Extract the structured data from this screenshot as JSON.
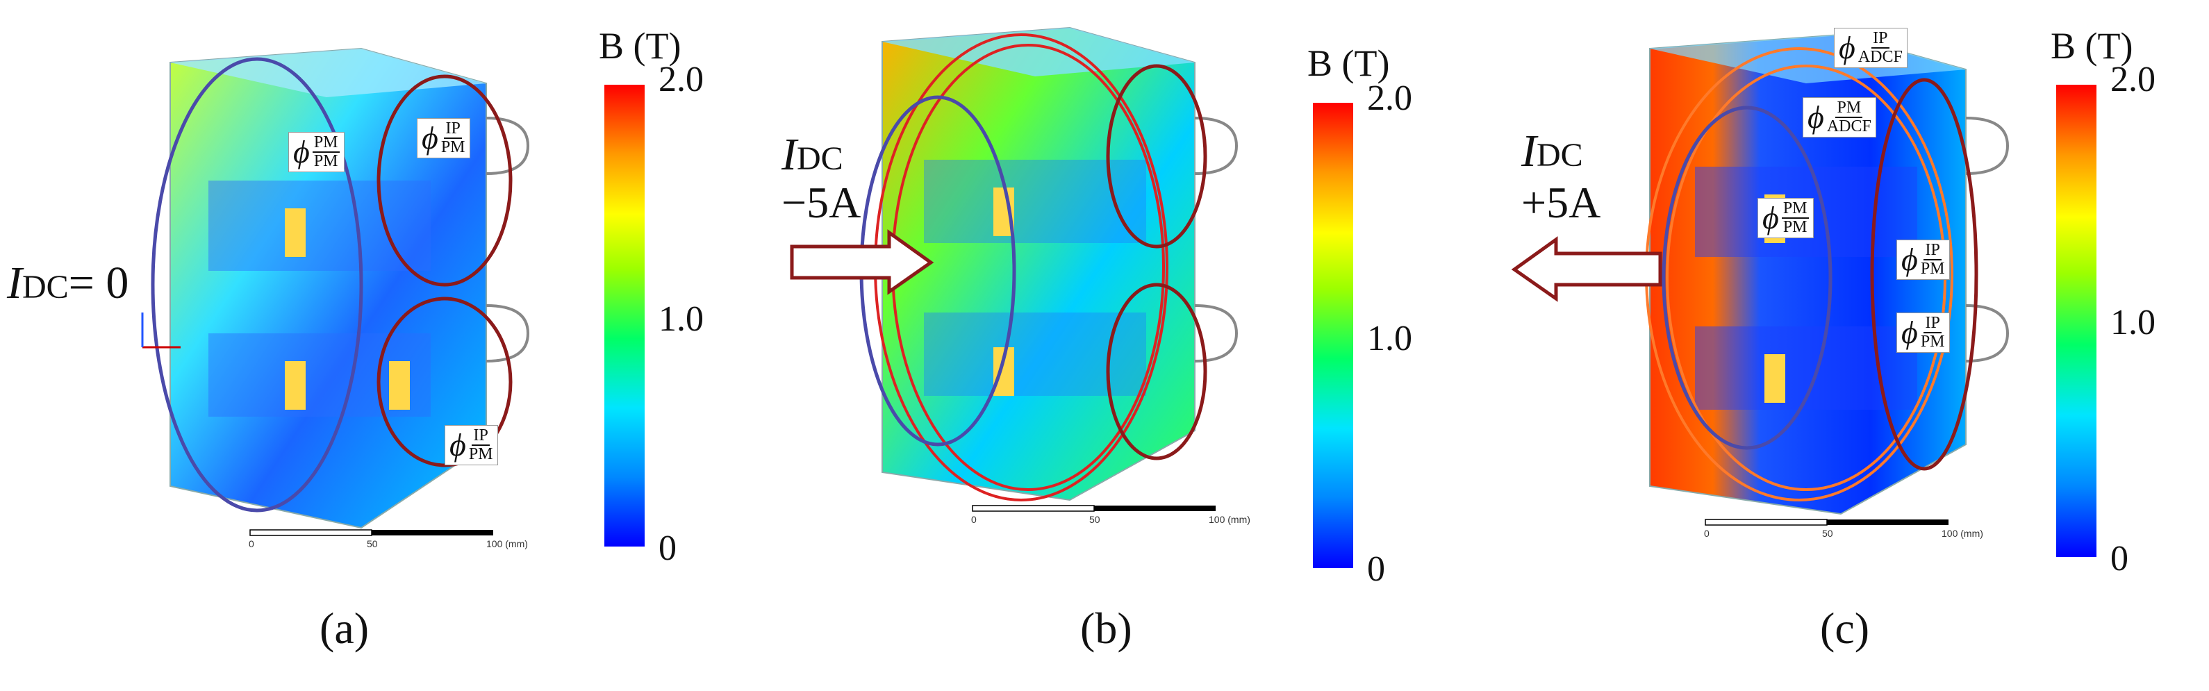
{
  "colorbar": {
    "title": "B (T)",
    "ticks": [
      "2.0",
      "1.0",
      "0"
    ],
    "colors": [
      "#0000ff",
      "#00aaff",
      "#00ffee",
      "#00ff66",
      "#88ff00",
      "#ffff00",
      "#ffaa00",
      "#ff4400",
      "#ff0000"
    ]
  },
  "panels": [
    {
      "caption": "(a)",
      "idc_symbol": "I",
      "idc_sub": "DC",
      "idc_value": "= 0",
      "labels": [
        {
          "phi": "ϕ",
          "num": "PM",
          "den": "PM"
        },
        {
          "phi": "ϕ",
          "num": "IP",
          "den": "PM"
        },
        {
          "phi": "ϕ",
          "num": "IP",
          "den": "PM"
        }
      ],
      "scale": [
        "0",
        "50",
        "100 (mm)"
      ]
    },
    {
      "caption": "(b)",
      "idc_symbol": "I",
      "idc_sub": "DC",
      "idc_value": "−5A",
      "labels": [],
      "scale": [
        "0",
        "50",
        "100 (mm)"
      ]
    },
    {
      "caption": "(c)",
      "idc_symbol": "I",
      "idc_sub": "DC",
      "idc_value": "+5A",
      "labels": [
        {
          "phi": "ϕ",
          "num": "IP",
          "den": "ADCF"
        },
        {
          "phi": "ϕ",
          "num": "PM",
          "den": "ADCF"
        },
        {
          "phi": "ϕ",
          "num": "PM",
          "den": "PM"
        },
        {
          "phi": "ϕ",
          "num": "IP",
          "den": "PM"
        },
        {
          "phi": "ϕ",
          "num": "IP",
          "den": "PM"
        }
      ],
      "scale": [
        "0",
        "50",
        "100 (mm)"
      ]
    }
  ]
}
